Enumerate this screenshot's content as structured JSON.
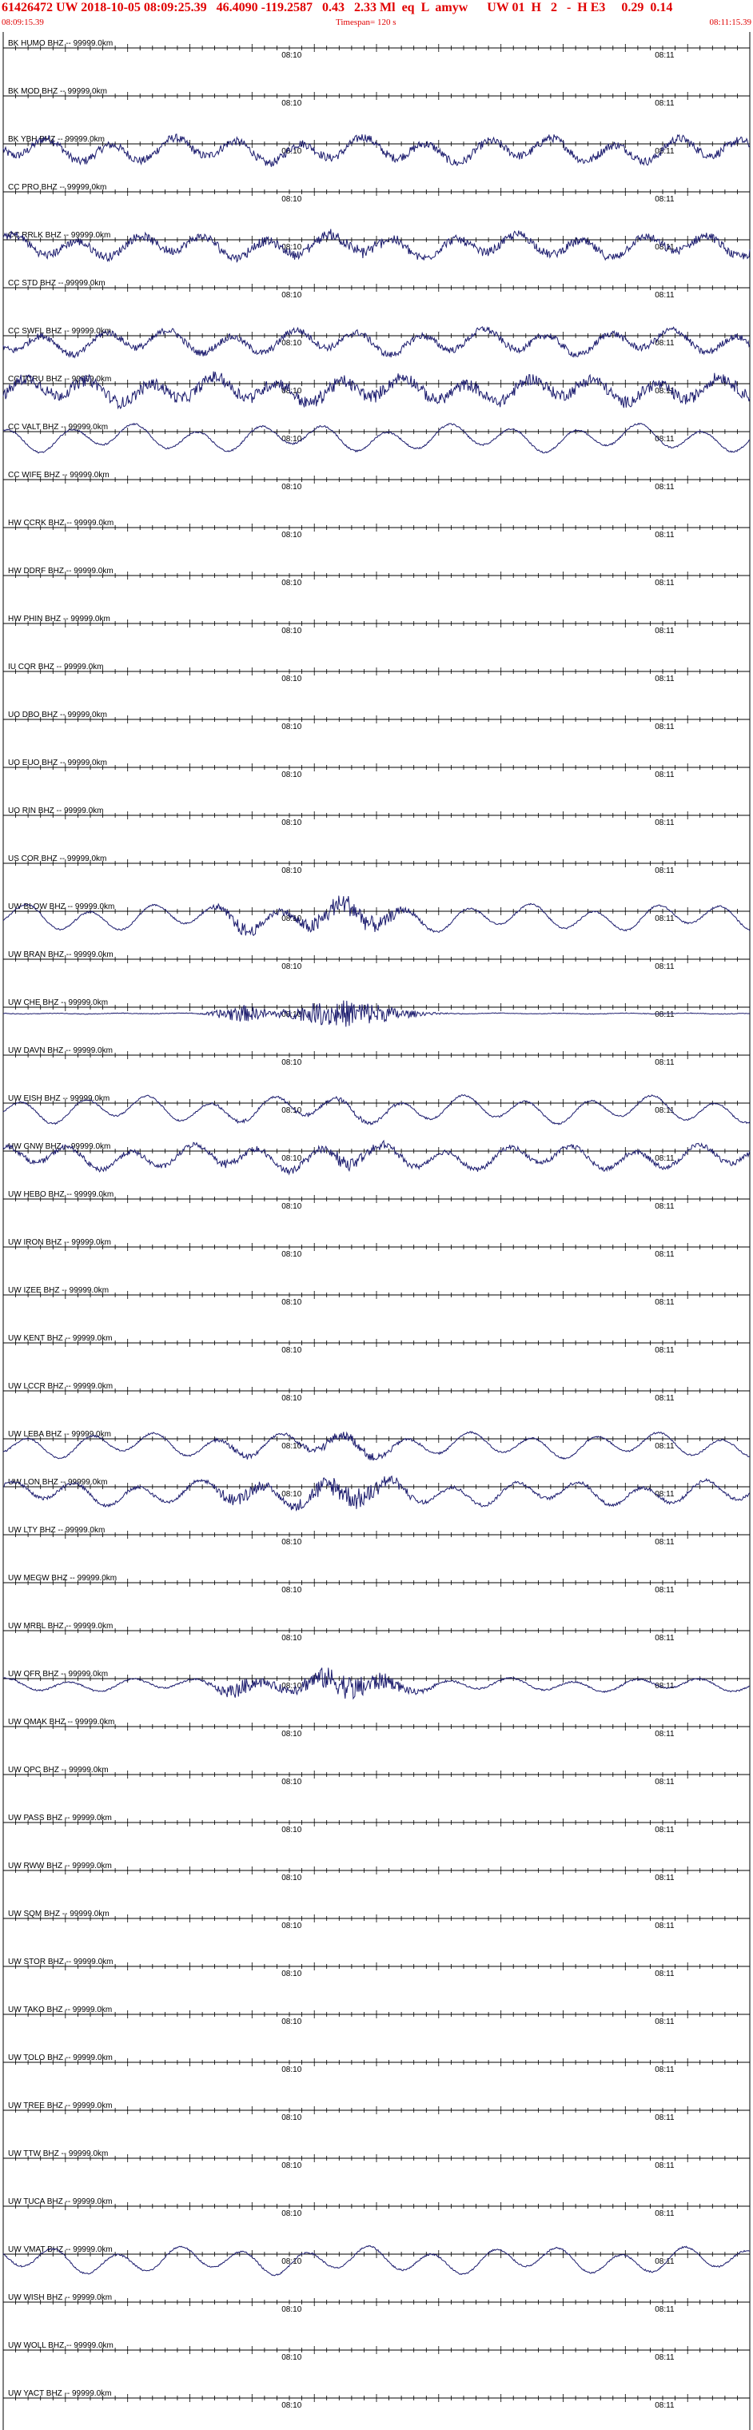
{
  "header": {
    "event_line": "61426472 UW 2018-10-05 08:09:25.39   46.4090 -119.2587   0.43   2.33 Ml  eq  L  amyw      UW 01  H   2   -  H E3     0.29  0.14",
    "start_time": "08:09:15.39",
    "timespan": "Timespan= 120 s",
    "end_time": "08:11:15.39"
  },
  "colors": {
    "header_text": "#e00000",
    "trace": "#1c1c6e",
    "axis": "#000000",
    "label": "#000000"
  },
  "chart_data": {
    "type": "line",
    "title": "",
    "x_unit": "s",
    "x_range": [
      0,
      120
    ],
    "time_ticks": [
      {
        "label": "08:10",
        "t": 45
      },
      {
        "label": "08:11",
        "t": 105
      }
    ],
    "channels": [
      {
        "label": "BK HUMO BHZ -- 99999.0km",
        "amp": 0,
        "event": 0,
        "noise": 0
      },
      {
        "label": "BK MOD BHZ -- 99999.0km",
        "amp": 0,
        "event": 0,
        "noise": 0
      },
      {
        "label": "BK YBH BHZ -- 99999.0km",
        "amp": 0.55,
        "event": 0,
        "noise": 0.25
      },
      {
        "label": "CC PRO BHZ -- 99999.0km",
        "amp": 0,
        "event": 0,
        "noise": 0
      },
      {
        "label": "CC RRLK BHZ -- 99999.0km",
        "amp": 0.5,
        "event": 0.15,
        "noise": 0.25
      },
      {
        "label": "CC STD BHZ -- 99999.0km",
        "amp": 0,
        "event": 0,
        "noise": 0
      },
      {
        "label": "CC SWFL BHZ -- 99999.0km",
        "amp": 0.55,
        "event": 0,
        "noise": 0.2
      },
      {
        "label": "CC TCRU BHZ -- 99999.0km",
        "amp": 0.55,
        "event": 0.1,
        "noise": 0.35
      },
      {
        "label": "CC VALT BHZ -- 99999.0km",
        "amp": 0.6,
        "event": 0,
        "noise": 0.05
      },
      {
        "label": "CC WIFE BHZ -- 99999.0km",
        "amp": 0,
        "event": 0,
        "noise": 0
      },
      {
        "label": "HW CCRK BHZ -- 99999.0km",
        "amp": 0,
        "event": 0,
        "noise": 0
      },
      {
        "label": "HW DDRF BHZ -- 99999.0km",
        "amp": 0,
        "event": 0,
        "noise": 0
      },
      {
        "label": "HW PHIN BHZ -- 99999.0km",
        "amp": 0,
        "event": 0,
        "noise": 0
      },
      {
        "label": "IU COR BHZ -- 99999.0km",
        "amp": 0,
        "event": 0,
        "noise": 0
      },
      {
        "label": "UO DBO BHZ -- 99999.0km",
        "amp": 0,
        "event": 0,
        "noise": 0
      },
      {
        "label": "UO EUO BHZ -- 99999.0km",
        "amp": 0,
        "event": 0,
        "noise": 0
      },
      {
        "label": "UO RIN BHZ -- 99999.0km",
        "amp": 0,
        "event": 0,
        "noise": 0
      },
      {
        "label": "US COR BHZ -- 99999.0km",
        "amp": 0,
        "event": 0,
        "noise": 0
      },
      {
        "label": "UW BLOW BHZ -- 99999.0km",
        "amp": 0.6,
        "event": 0.45,
        "noise": 0.05
      },
      {
        "label": "UW BRAN BHZ -- 99999.0km",
        "amp": 0,
        "event": 0,
        "noise": 0
      },
      {
        "label": "UW CHE BHZ -- 99999.0km",
        "amp": 0.02,
        "event": 0.6,
        "noise": 0.02
      },
      {
        "label": "UW DAVN BHZ -- 99999.0km",
        "amp": 0,
        "event": 0,
        "noise": 0
      },
      {
        "label": "UW EISH BHZ -- 99999.0km",
        "amp": 0.6,
        "event": 0.1,
        "noise": 0.05
      },
      {
        "label": "UW GNW BHZ -- 99999.0km",
        "amp": 0.55,
        "event": 0.2,
        "noise": 0.15
      },
      {
        "label": "UW HEBO BHZ -- 99999.0km",
        "amp": 0,
        "event": 0,
        "noise": 0
      },
      {
        "label": "UW IRON BHZ -- 99999.0km",
        "amp": 0,
        "event": 0,
        "noise": 0
      },
      {
        "label": "UW IZEE BHZ -- 99999.0km",
        "amp": 0,
        "event": 0,
        "noise": 0
      },
      {
        "label": "UW KENT BHZ -- 99999.0km",
        "amp": 0,
        "event": 0,
        "noise": 0
      },
      {
        "label": "UW LCCR BHZ -- 99999.0km",
        "amp": 0,
        "event": 0,
        "noise": 0
      },
      {
        "label": "UW LEBA BHZ -- 99999.0km",
        "amp": 0.55,
        "event": 0.2,
        "noise": 0.05
      },
      {
        "label": "UW LON BHZ -- 99999.0km",
        "amp": 0.55,
        "event": 0.45,
        "noise": 0.1
      },
      {
        "label": "UW LTY BHZ -- 99999.0km",
        "amp": 0,
        "event": 0,
        "noise": 0
      },
      {
        "label": "UW MEGW BHZ -- 99999.0km",
        "amp": 0,
        "event": 0,
        "noise": 0
      },
      {
        "label": "UW MRBL BHZ -- 99999.0km",
        "amp": 0,
        "event": 0,
        "noise": 0
      },
      {
        "label": "UW OFR BHZ -- 99999.0km",
        "amp": 0.3,
        "event": 0.55,
        "noise": 0.05
      },
      {
        "label": "UW OMAK BHZ -- 99999.0km",
        "amp": 0,
        "event": 0,
        "noise": 0
      },
      {
        "label": "UW OPC BHZ -- 99999.0km",
        "amp": 0,
        "event": 0,
        "noise": 0
      },
      {
        "label": "UW PASS BHZ -- 99999.0km",
        "amp": 0,
        "event": 0,
        "noise": 0
      },
      {
        "label": "UW RWW BHZ -- 99999.0km",
        "amp": 0,
        "event": 0,
        "noise": 0
      },
      {
        "label": "UW SQM BHZ -- 99999.0km",
        "amp": 0,
        "event": 0,
        "noise": 0
      },
      {
        "label": "UW STOR BHZ -- 99999.0km",
        "amp": 0,
        "event": 0,
        "noise": 0
      },
      {
        "label": "UW TAKO BHZ -- 99999.0km",
        "amp": 0,
        "event": 0,
        "noise": 0
      },
      {
        "label": "UW TOLO BHZ -- 99999.0km",
        "amp": 0,
        "event": 0,
        "noise": 0
      },
      {
        "label": "UW TREE BHZ -- 99999.0km",
        "amp": 0,
        "event": 0,
        "noise": 0
      },
      {
        "label": "UW TTW BHZ -- 99999.0km",
        "amp": 0,
        "event": 0,
        "noise": 0
      },
      {
        "label": "UW TUCA BHZ -- 99999.0km",
        "amp": 0,
        "event": 0,
        "noise": 0
      },
      {
        "label": "UW VMAT BHZ -- 99999.0km",
        "amp": 0.6,
        "event": 0,
        "noise": 0.05
      },
      {
        "label": "UW WISH BHZ -- 99999.0km",
        "amp": 0,
        "event": 0,
        "noise": 0
      },
      {
        "label": "UW WOLL BHZ -- 99999.0km",
        "amp": 0,
        "event": 0,
        "noise": 0
      },
      {
        "label": "UW YACT BHZ -- 99999.0km",
        "amp": 0,
        "event": 0,
        "noise": 0
      }
    ]
  }
}
